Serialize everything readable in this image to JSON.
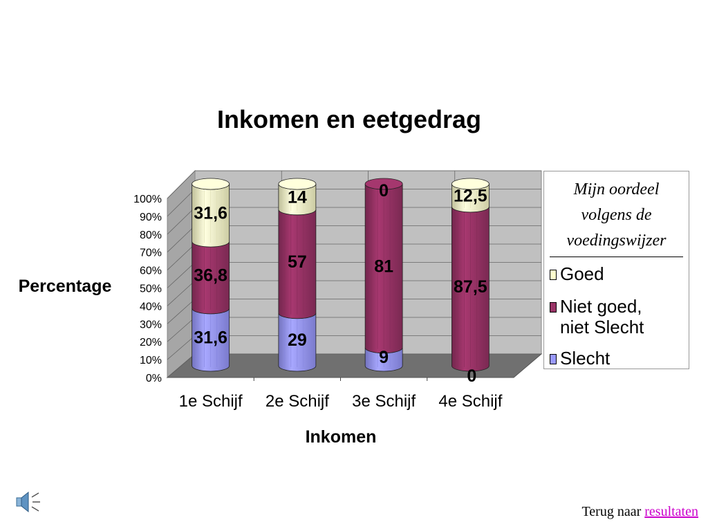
{
  "chart_data": {
    "type": "bar",
    "stacked": true,
    "percent_stacked": true,
    "style": "3d-cylinder",
    "title": "Inkomen en eetgedrag",
    "xlabel": "Inkomen",
    "ylabel": "Percentage",
    "categories": [
      "1e Schijf",
      "2e Schijf",
      "3e Schijf",
      "4e Schijf"
    ],
    "yticks": [
      "0%",
      "10%",
      "20%",
      "30%",
      "40%",
      "50%",
      "60%",
      "70%",
      "80%",
      "90%",
      "100%"
    ],
    "ylim": [
      0,
      100
    ],
    "grid": true,
    "legend_position": "right",
    "legend_title": "Mijn oordeel volgens de voedingswijzer",
    "series": [
      {
        "name": "Slecht",
        "color": "#9999ff",
        "values": [
          31.6,
          29,
          9,
          0
        ],
        "labels": [
          "31,6",
          "29",
          "9",
          "0"
        ]
      },
      {
        "name": "Niet goed, niet Slecht",
        "color": "#993366",
        "values": [
          36.8,
          57,
          81,
          87.5
        ],
        "labels": [
          "36,8",
          "57",
          "81",
          "87,5"
        ]
      },
      {
        "name": "Goed",
        "color": "#ffffcc",
        "values": [
          31.6,
          14,
          0,
          12.5
        ],
        "labels": [
          "31,6",
          "14",
          "0",
          "12,5"
        ]
      }
    ],
    "legend_order": [
      {
        "name": "Goed",
        "lines": [
          "Goed"
        ],
        "color": "#ffffcc"
      },
      {
        "name": "Niet goed, niet Slecht",
        "lines": [
          "Niet goed,",
          "niet Slecht"
        ],
        "color": "#993366"
      },
      {
        "name": "Slecht",
        "lines": [
          "Slecht"
        ],
        "color": "#9999ff"
      }
    ]
  },
  "footer": {
    "text": "Terug naar",
    "link": "resultaten"
  },
  "icons": {
    "speaker": "speaker-icon"
  }
}
